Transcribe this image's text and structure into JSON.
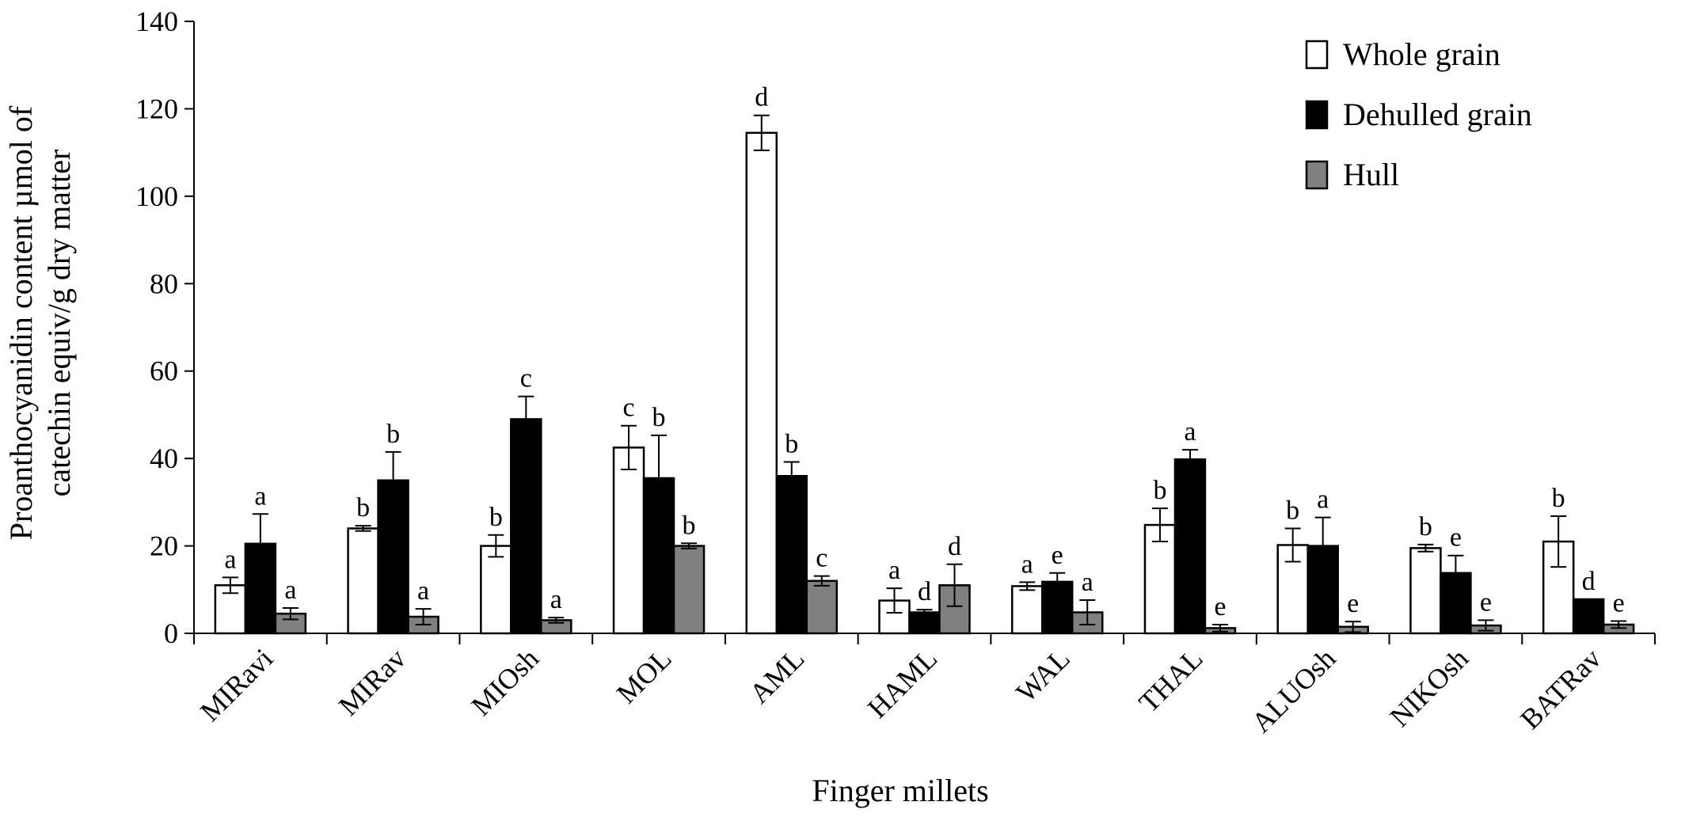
{
  "chart_data": {
    "type": "bar",
    "title": "",
    "xlabel": "Finger millets",
    "ylabel_lines": [
      "Proanthocyanidin content µmol of",
      "catechin equiv/g dry matter"
    ],
    "ylim": [
      0,
      140
    ],
    "yticks": [
      0,
      20,
      40,
      60,
      80,
      100,
      120,
      140
    ],
    "grid": false,
    "legend_position": "top-right",
    "categories": [
      "MIRavi",
      "MIRav",
      "MIOsh",
      "MOL",
      "AML",
      "HAML",
      "WAL",
      "THAL",
      "ALUOsh",
      "NIKOsh",
      "BATRav"
    ],
    "series": [
      {
        "name": "Whole grain",
        "color": "#ffffff",
        "values": [
          11,
          24,
          20,
          42.5,
          114.5,
          7.5,
          10.8,
          24.8,
          20.2,
          19.5,
          21
        ],
        "errors": [
          1.8,
          0.6,
          2.5,
          5,
          4,
          2.8,
          0.9,
          3.8,
          3.8,
          0.8,
          5.8
        ],
        "significance": [
          "a",
          "b",
          "b",
          "c",
          "d",
          "a",
          "a",
          "b",
          "b",
          "b",
          "b"
        ]
      },
      {
        "name": "Dehulled grain",
        "color": "#000000",
        "values": [
          20.5,
          35,
          49,
          35.5,
          36,
          4.8,
          11.8,
          39.8,
          20,
          13.8,
          7.8
        ],
        "errors": [
          6.8,
          6.5,
          5.2,
          9.8,
          3.2,
          0.6,
          2,
          2.2,
          6.5,
          4,
          0
        ],
        "significance": [
          "a",
          "b",
          "c",
          "b",
          "b",
          "d",
          "e",
          "a",
          "a",
          "e",
          "d"
        ]
      },
      {
        "name": "Hull",
        "color": "#808080",
        "values": [
          4.5,
          3.8,
          3,
          20,
          12,
          11,
          4.8,
          1.2,
          1.5,
          1.8,
          2
        ],
        "errors": [
          1.3,
          1.8,
          0.6,
          0.6,
          1.1,
          4.8,
          2.8,
          0.8,
          1.2,
          1.2,
          0.8
        ],
        "significance": [
          "a",
          "a",
          "a",
          "b",
          "c",
          "d",
          "a",
          "e",
          "e",
          "e",
          "e"
        ]
      }
    ]
  }
}
